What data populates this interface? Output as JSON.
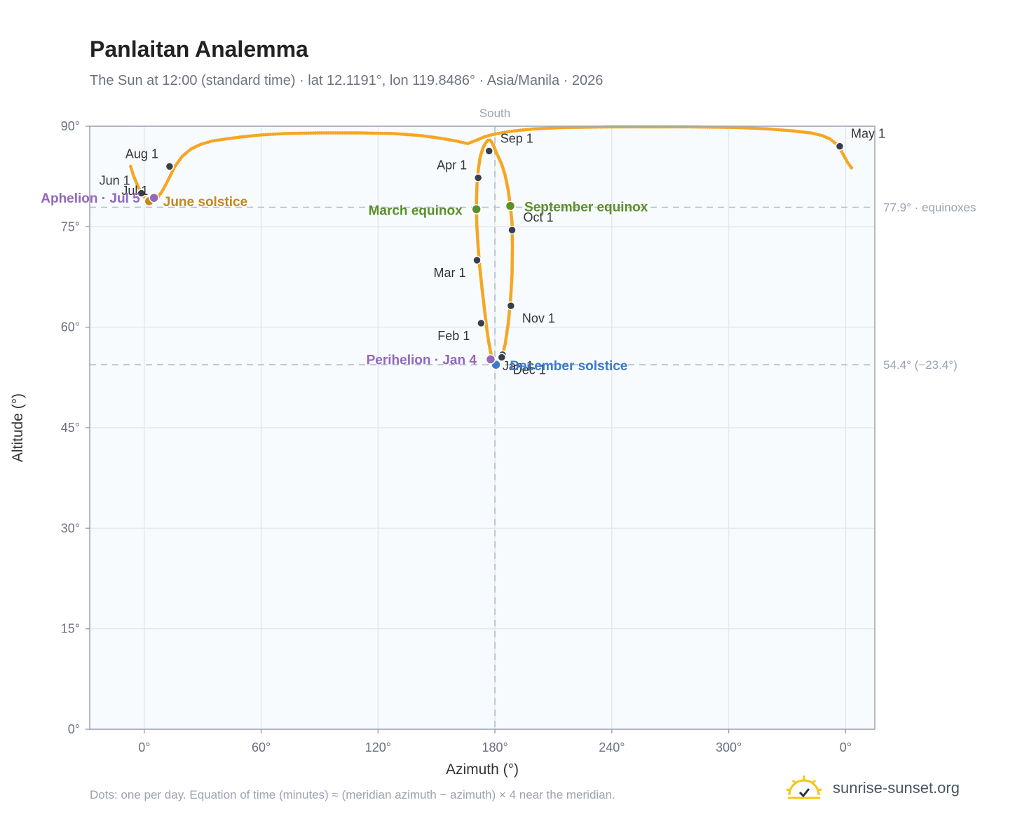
{
  "header": {
    "title": "Panlaitan Analemma",
    "subtitle": "The Sun at 12:00 (standard time) · lat 12.1191°, lon 119.8486° · Asia/Manila · 2026"
  },
  "footer": {
    "note": "Dots: one per day. Equation of time (minutes) ≈ (meridian azimuth − azimuth) × 4 near the meridian.",
    "brand": "sunrise-sunset.org"
  },
  "colors": {
    "curve": "#f5a623",
    "month_marker": "#37404a",
    "equinox": "#5a8f29",
    "december_solstice": "#3a7bc8",
    "june_solstice": "#c08a1c",
    "apsis": "#9467bd",
    "reference_line": "#b8c2cc",
    "plot_bg": "#f8fbfe",
    "grid": "#e3e8ee",
    "frame": "#9aa4b2"
  },
  "chart_data": {
    "type": "scatter",
    "x_label": "Azimuth (°)",
    "y_label": "Altitude (°)",
    "x_ticks": [
      "0°",
      "60°",
      "120°",
      "180°",
      "240°",
      "300°",
      "0°"
    ],
    "y_ticks": [
      "0°",
      "15°",
      "30°",
      "45°",
      "60°",
      "75°",
      "90°"
    ],
    "xlim": [
      -28,
      375
    ],
    "ylim": [
      0,
      90
    ],
    "grid": true,
    "top_label": "South",
    "reference_lines": [
      {
        "altitude": 77.9,
        "label": "77.9° · equinoxes",
        "orientation": "horizontal"
      },
      {
        "altitude": 54.4,
        "label": "54.4° (−23.4°)",
        "orientation": "horizontal"
      },
      {
        "azimuth": 180,
        "orientation": "vertical"
      }
    ],
    "daily_path": {
      "north_lobe": [
        [
          -7.0,
          84.0
        ],
        [
          -5.5,
          82.6
        ],
        [
          -3.5,
          81.2
        ],
        [
          -1.5,
          80.0
        ],
        [
          0.5,
          79.2
        ],
        [
          2.5,
          78.8
        ],
        [
          4.5,
          78.8
        ],
        [
          6.5,
          79.2
        ],
        [
          9.0,
          80.2
        ],
        [
          12.0,
          81.8
        ],
        [
          15.5,
          83.9
        ],
        [
          19.5,
          85.5
        ],
        [
          24.0,
          86.6
        ],
        [
          29.0,
          87.3
        ],
        [
          35.0,
          87.8
        ],
        [
          42.0,
          88.1
        ],
        [
          50.0,
          88.4
        ],
        [
          60.0,
          88.7
        ],
        [
          72.0,
          88.9
        ],
        [
          90.0,
          89.0
        ],
        [
          110.0,
          89.0
        ],
        [
          128.0,
          88.9
        ],
        [
          142.0,
          88.6
        ],
        [
          152.0,
          88.2
        ],
        [
          160.0,
          87.8
        ],
        [
          166.0,
          87.4
        ],
        [
          170.5,
          87.9
        ],
        [
          174.5,
          88.4
        ],
        [
          178.0,
          88.7
        ],
        [
          181.5,
          88.9
        ],
        [
          185.0,
          89.1
        ],
        [
          190.0,
          89.3
        ],
        [
          200.0,
          89.6
        ],
        [
          215.0,
          89.8
        ],
        [
          240.0,
          89.9
        ],
        [
          280.0,
          89.9
        ],
        [
          305.0,
          89.8
        ],
        [
          320.0,
          89.6
        ],
        [
          333.0,
          89.3
        ],
        [
          342.0,
          89.0
        ],
        [
          348.0,
          88.6
        ],
        [
          352.0,
          88.1
        ],
        [
          355.0,
          87.4
        ],
        [
          358.0,
          86.2
        ],
        [
          361.0,
          84.6
        ],
        [
          363.0,
          83.8
        ]
      ],
      "figure8": [
        [
          180.5,
          54.4
        ],
        [
          179.5,
          54.6
        ],
        [
          178.6,
          55.2
        ],
        [
          177.7,
          56.4
        ],
        [
          176.7,
          58.0
        ],
        [
          175.7,
          60.0
        ],
        [
          174.7,
          62.5
        ],
        [
          173.5,
          65.5
        ],
        [
          172.3,
          68.7
        ],
        [
          171.4,
          71.9
        ],
        [
          170.7,
          75.2
        ],
        [
          170.5,
          78.3
        ],
        [
          170.8,
          81.3
        ],
        [
          171.5,
          83.6
        ],
        [
          172.5,
          85.5
        ],
        [
          173.8,
          86.7
        ],
        [
          175.2,
          87.5
        ],
        [
          176.5,
          87.9
        ],
        [
          177.6,
          87.9
        ],
        [
          178.6,
          87.5
        ],
        [
          179.6,
          86.9
        ],
        [
          180.5,
          86.2
        ],
        [
          181.8,
          85.4
        ],
        [
          183.5,
          84.3
        ],
        [
          185.3,
          82.6
        ],
        [
          186.8,
          80.5
        ],
        [
          187.9,
          78.1
        ],
        [
          188.8,
          75.5
        ],
        [
          189.0,
          72.0
        ],
        [
          188.8,
          68.0
        ],
        [
          188.0,
          64.0
        ],
        [
          186.8,
          60.5
        ],
        [
          185.3,
          57.5
        ],
        [
          183.7,
          55.7
        ],
        [
          182.0,
          54.8
        ],
        [
          180.5,
          54.4
        ]
      ]
    },
    "month_markers": [
      {
        "label": "Jan 1",
        "azimuth": 183.9,
        "altitude": 55.9
      },
      {
        "label": "Feb 1",
        "azimuth": 172.9,
        "altitude": 60.6
      },
      {
        "label": "Mar 1",
        "azimuth": 170.8,
        "altitude": 70.0
      },
      {
        "label": "Apr 1",
        "azimuth": 171.4,
        "altitude": 82.3
      },
      {
        "label": "May 1",
        "azimuth": 357.0,
        "altitude": 87.0
      },
      {
        "label": "Jun 1",
        "azimuth": -1.5,
        "altitude": 80.0
      },
      {
        "label": "Jul 1",
        "azimuth": 2.0,
        "altitude": 78.9
      },
      {
        "label": "Aug 1",
        "azimuth": 13.0,
        "altitude": 84.0
      },
      {
        "label": "Sep 1",
        "azimuth": 177.0,
        "altitude": 86.3
      },
      {
        "label": "Oct 1",
        "azimuth": 188.8,
        "altitude": 74.5
      },
      {
        "label": "Nov 1",
        "azimuth": 188.2,
        "altitude": 63.2
      },
      {
        "label": "Dec 1",
        "azimuth": 183.5,
        "altitude": 55.5
      }
    ],
    "key_points": [
      {
        "label": "March equinox",
        "azimuth": 170.5,
        "altitude": 77.6,
        "kind": "equinox"
      },
      {
        "label": "September equinox",
        "azimuth": 187.9,
        "altitude": 78.1,
        "kind": "equinox"
      },
      {
        "label": "December solstice",
        "azimuth": 180.5,
        "altitude": 54.4,
        "kind": "december_solstice"
      },
      {
        "label": "June solstice",
        "azimuth": 2.5,
        "altitude": 78.8,
        "kind": "june_solstice"
      },
      {
        "label": "Perihelion · Jan 4",
        "azimuth": 177.8,
        "altitude": 55.2,
        "kind": "apsis"
      },
      {
        "label": "Aphelion · Jul 5",
        "azimuth": 5.0,
        "altitude": 79.3,
        "kind": "apsis"
      }
    ]
  }
}
